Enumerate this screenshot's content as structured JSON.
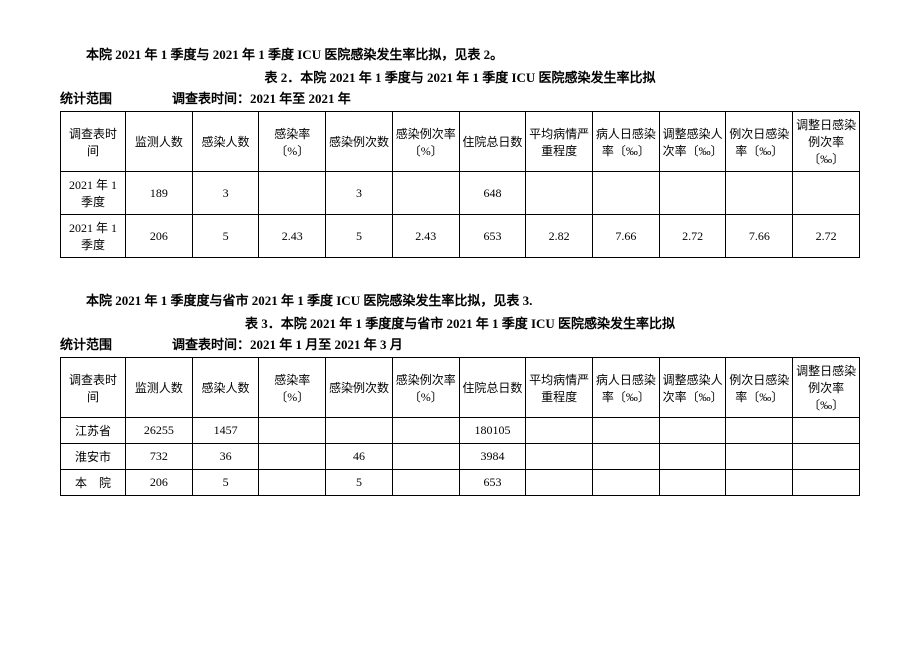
{
  "section1": {
    "intro": "本院 2021 年 1 季度与 2021 年 1 季度 ICU 医院感染发生率比拟，见表 2。",
    "title": "表 2．本院 2021 年 1 季度与 2021 年 1 季度 ICU 医院感染发生率比拟",
    "scope_label": "统计范围",
    "time_label": "调查表时间：2021 年至 2021 年",
    "columns": [
      "调查表时间",
      "监测人数",
      "感染人数",
      "感染率〔%〕",
      "感染例次数",
      "感染例次率〔%〕",
      "住院总日数",
      "平均病情严重程度",
      "病人日感染率〔‰〕",
      "调整感染人次率〔‰〕",
      "例次日感染率〔‰〕",
      "调整日感染例次率〔‰〕"
    ],
    "rows": [
      [
        "2021 年 1 季度",
        "189",
        "3",
        "",
        "3",
        "",
        "648",
        "",
        "",
        "",
        "",
        ""
      ],
      [
        "2021 年 1 季度",
        "206",
        "5",
        "2.43",
        "5",
        "2.43",
        "653",
        "2.82",
        "7.66",
        "2.72",
        "7.66",
        "2.72"
      ]
    ]
  },
  "section2": {
    "intro": "本院 2021 年 1 季度度与省市 2021 年 1 季度 ICU 医院感染发生率比拟，见表 3.",
    "title": "表 3．本院 2021 年 1 季度度与省市 2021 年 1 季度 ICU 医院感染发生率比拟",
    "scope_label": "统计范围",
    "time_label": "调查表时间：2021 年 1 月至 2021 年 3 月",
    "columns": [
      "调查表时间",
      "监测人数",
      "感染人数",
      "感染率〔%〕",
      "感染例次数",
      "感染例次率〔%〕",
      "住院总日数",
      "平均病情严重程度",
      "病人日感染率〔‰〕",
      "调整感染人次率〔‰〕",
      "例次日感染率〔‰〕",
      "调整日感染例次率〔‰〕"
    ],
    "rows": [
      [
        "江苏省",
        "26255",
        "1457",
        "",
        "",
        "",
        "180105",
        "",
        "",
        "",
        "",
        ""
      ],
      [
        "淮安市",
        "732",
        "36",
        "",
        "46",
        "",
        "3984",
        "",
        "",
        "",
        "",
        ""
      ],
      [
        "本　院",
        "206",
        "5",
        "",
        "5",
        "",
        "653",
        "",
        "",
        "",
        "",
        ""
      ]
    ]
  }
}
